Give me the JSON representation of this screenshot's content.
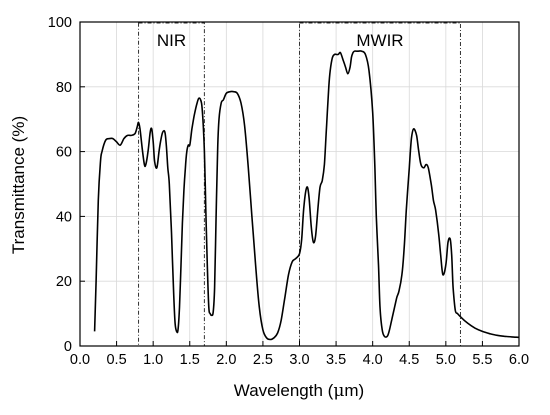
{
  "chart_data": {
    "type": "line",
    "title": "",
    "xlabel": "Wavelength (",
    "xlabel_symbol": "μ",
    "xlabel_suffix": "m)",
    "ylabel": "Transmittance (%)",
    "xlim": [
      0.0,
      6.0
    ],
    "ylim": [
      0,
      100
    ],
    "x_ticks": [
      "0.0",
      "0.5",
      "1.0",
      "1.5",
      "2.0",
      "2.5",
      "3.0",
      "3.5",
      "4.0",
      "4.5",
      "5.0",
      "5.5",
      "6.0"
    ],
    "y_ticks": [
      "0",
      "20",
      "40",
      "60",
      "80",
      "100"
    ],
    "grid": true,
    "line_color": "#000000",
    "annotations": [
      {
        "label": "NIR",
        "x_range": [
          0.8,
          1.7
        ]
      },
      {
        "label": "MWIR",
        "x_range": [
          3.0,
          5.2
        ]
      }
    ],
    "series": [
      {
        "x": [
          0.2,
          0.22,
          0.25,
          0.28,
          0.3,
          0.35,
          0.4,
          0.45,
          0.5,
          0.55,
          0.6,
          0.65,
          0.7,
          0.75,
          0.78,
          0.8,
          0.82,
          0.85,
          0.88,
          0.9,
          0.93,
          0.96,
          0.98,
          1.0,
          1.02,
          1.05,
          1.08,
          1.1,
          1.13,
          1.16,
          1.18,
          1.2,
          1.22,
          1.25,
          1.28,
          1.3,
          1.32,
          1.34,
          1.36,
          1.38,
          1.4,
          1.42,
          1.44,
          1.46,
          1.48,
          1.5,
          1.53,
          1.56,
          1.6,
          1.63,
          1.66,
          1.68,
          1.7,
          1.72,
          1.74,
          1.76,
          1.78,
          1.8,
          1.82,
          1.84,
          1.86,
          1.88,
          1.9,
          1.93,
          1.96,
          2.0,
          2.05,
          2.1,
          2.15,
          2.2,
          2.25,
          2.3,
          2.35,
          2.4,
          2.45,
          2.5,
          2.55,
          2.6,
          2.65,
          2.7,
          2.75,
          2.8,
          2.85,
          2.9,
          2.95,
          3.0,
          3.03,
          3.06,
          3.1,
          3.13,
          3.16,
          3.19,
          3.22,
          3.25,
          3.28,
          3.31,
          3.34,
          3.37,
          3.4,
          3.42,
          3.45,
          3.48,
          3.5,
          3.53,
          3.56,
          3.6,
          3.63,
          3.66,
          3.69,
          3.71,
          3.73,
          3.75,
          3.78,
          3.8,
          3.85,
          3.9,
          3.95,
          4.0,
          4.03,
          4.05,
          4.08,
          4.1,
          4.13,
          4.16,
          4.2,
          4.23,
          4.26,
          4.3,
          4.33,
          4.36,
          4.4,
          4.43,
          4.46,
          4.5,
          4.53,
          4.56,
          4.6,
          4.63,
          4.66,
          4.7,
          4.73,
          4.76,
          4.8,
          4.83,
          4.86,
          4.9,
          4.93,
          4.96,
          5.0,
          5.03,
          5.06,
          5.08,
          5.1,
          5.13,
          5.16,
          5.2,
          5.3,
          5.4,
          5.5,
          5.6,
          5.7,
          5.8,
          5.9,
          6.0
        ],
        "values": [
          4.5,
          20,
          45,
          57,
          60,
          63.5,
          64,
          64,
          63,
          62,
          64,
          65,
          65,
          65.5,
          67.5,
          69,
          67,
          61,
          56,
          56,
          60,
          66,
          67,
          63,
          57,
          55,
          60,
          63,
          66,
          66,
          62,
          55,
          50,
          35,
          16,
          7,
          4.5,
          5,
          12,
          25,
          38,
          48,
          55,
          60,
          62,
          62,
          67,
          71,
          75,
          76.5,
          75,
          70,
          60,
          42,
          25,
          12,
          10,
          9.5,
          10.5,
          18,
          40,
          60,
          70,
          75,
          76,
          78,
          78.5,
          78.5,
          78,
          75,
          68,
          55,
          40,
          25,
          12,
          5,
          2.5,
          2,
          2.5,
          4,
          8,
          15,
          22,
          26,
          27,
          28.5,
          33,
          43,
          49,
          46,
          37,
          32,
          34,
          42,
          49,
          51,
          56,
          68,
          80,
          85,
          89,
          90,
          90,
          90,
          90.5,
          88,
          86,
          84,
          86,
          89,
          90.5,
          91,
          91,
          91,
          91,
          90,
          85,
          72,
          55,
          40,
          25,
          12,
          5,
          3,
          3,
          5,
          8,
          12,
          15,
          17,
          22,
          30,
          42,
          55,
          64,
          67,
          65,
          60,
          56,
          55,
          56,
          55,
          50,
          45,
          42,
          35,
          28,
          22,
          25,
          32,
          33,
          28,
          18,
          11,
          10,
          9,
          7,
          5.5,
          4.5,
          3.8,
          3.3,
          3,
          2.8,
          2.7
        ]
      }
    ]
  }
}
